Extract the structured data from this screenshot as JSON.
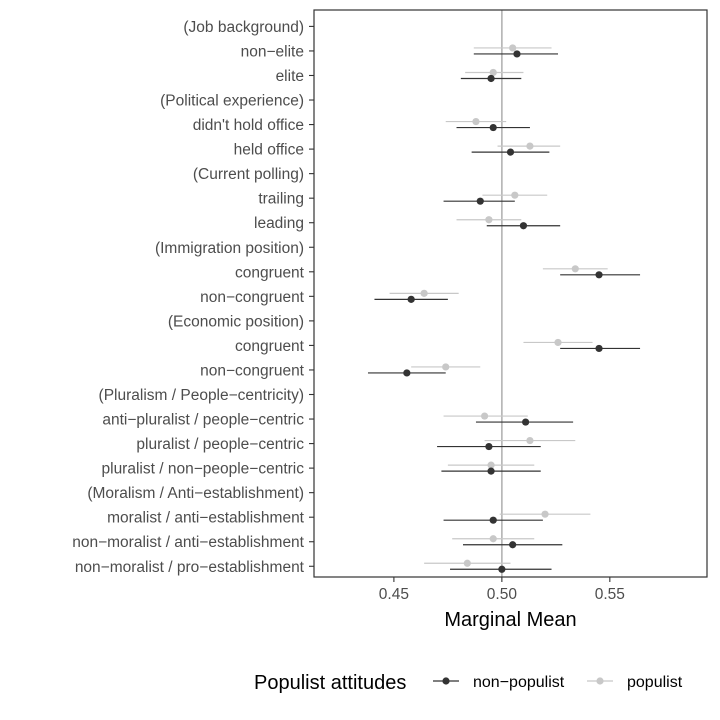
{
  "chart_data": {
    "type": "scatter",
    "style": "dot-and-whisker",
    "xlabel": "Marginal Mean",
    "xlim": [
      0.413,
      0.595
    ],
    "xticks": [
      0.45,
      0.5,
      0.55
    ],
    "xtick_labels": [
      "0.45",
      "0.50",
      "0.55"
    ],
    "reference_line": 0.5,
    "grid": false,
    "legend": {
      "title": "Populist attitudes",
      "position": "bottom"
    },
    "categories": [
      "(Job background)",
      "non−elite",
      "elite",
      "(Political experience)",
      "didn't hold office",
      "held office",
      "(Current polling)",
      "trailing",
      "leading",
      "(Immigration position)",
      "congruent ",
      "non−congruent ",
      "(Economic position)",
      "congruent",
      "non−congruent",
      "(Pluralism / People−centricity)",
      "anti−pluralist / people−centric",
      "pluralist / people−centric",
      "pluralist / non−people−centric",
      "(Moralism / Anti−establishment)",
      "moralist / anti−establishment",
      "non−moralist / anti−establishment",
      "non−moralist / pro−establishment"
    ],
    "series": [
      {
        "name": "non−populist",
        "color": "#333333",
        "estimates": [
          null,
          0.507,
          0.495,
          null,
          0.496,
          0.504,
          null,
          0.49,
          0.51,
          null,
          0.545,
          0.458,
          null,
          0.545,
          0.456,
          null,
          0.511,
          0.494,
          0.495,
          null,
          0.496,
          0.505,
          0.5
        ],
        "lower": [
          null,
          0.487,
          0.481,
          null,
          0.479,
          0.486,
          null,
          0.473,
          0.493,
          null,
          0.527,
          0.441,
          null,
          0.527,
          0.438,
          null,
          0.488,
          0.47,
          0.472,
          null,
          0.473,
          0.482,
          0.476
        ],
        "upper": [
          null,
          0.526,
          0.509,
          null,
          0.513,
          0.522,
          null,
          0.506,
          0.527,
          null,
          0.564,
          0.475,
          null,
          0.564,
          0.474,
          null,
          0.533,
          0.518,
          0.518,
          null,
          0.519,
          0.528,
          0.523
        ]
      },
      {
        "name": "populist",
        "color": "#c8c8c8",
        "estimates": [
          null,
          0.505,
          0.496,
          null,
          0.488,
          0.513,
          null,
          0.506,
          0.494,
          null,
          0.534,
          0.464,
          null,
          0.526,
          0.474,
          null,
          0.492,
          0.513,
          0.495,
          null,
          0.52,
          0.496,
          0.484
        ],
        "lower": [
          null,
          0.487,
          0.483,
          null,
          0.474,
          0.498,
          null,
          0.491,
          0.479,
          null,
          0.519,
          0.448,
          null,
          0.51,
          0.458,
          null,
          0.473,
          0.492,
          0.475,
          null,
          0.499,
          0.477,
          0.464
        ],
        "upper": [
          null,
          0.523,
          0.51,
          null,
          0.502,
          0.527,
          null,
          0.521,
          0.509,
          null,
          0.549,
          0.48,
          null,
          0.542,
          0.49,
          null,
          0.512,
          0.534,
          0.515,
          null,
          0.541,
          0.515,
          0.504
        ]
      }
    ]
  }
}
